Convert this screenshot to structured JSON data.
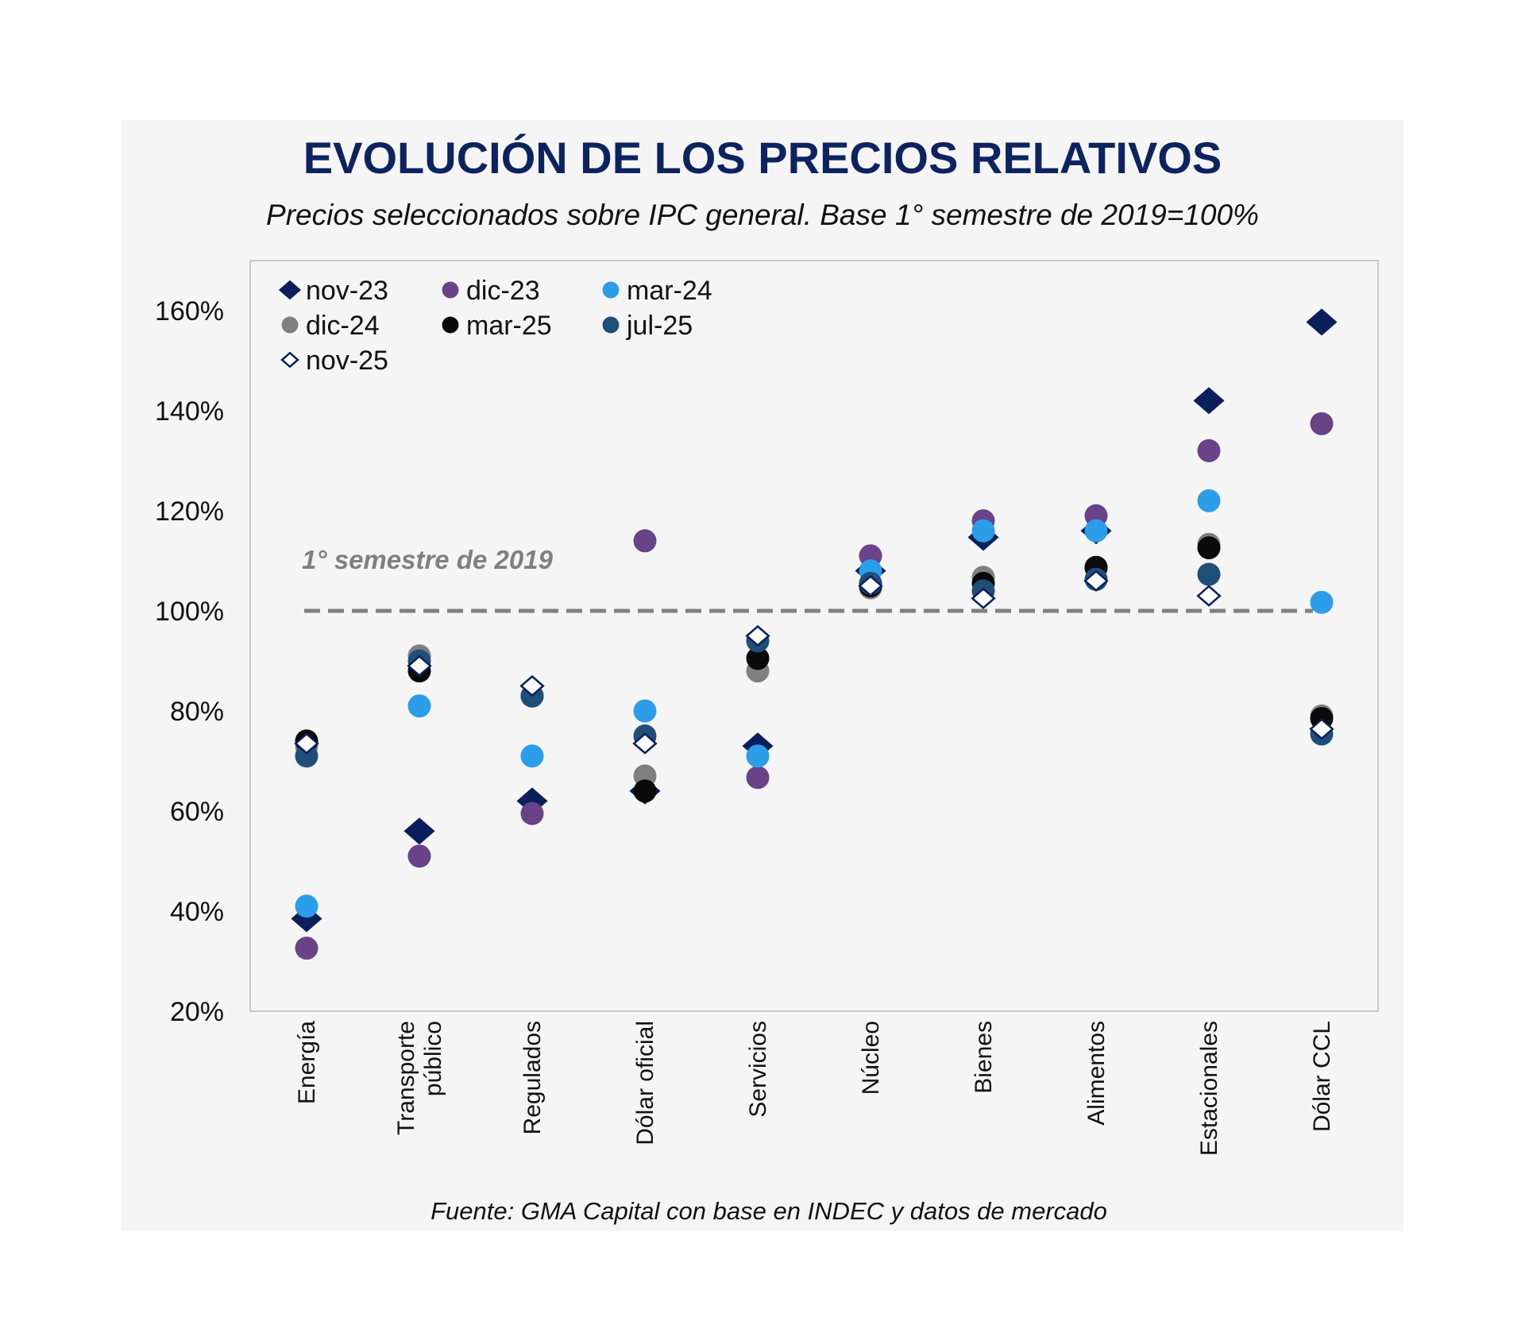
{
  "chart_data": {
    "type": "scatter",
    "title": "EVOLUCIÓN DE LOS PRECIOS RELATIVOS",
    "subtitle": "Precios seleccionados sobre IPC general. Base 1° semestre de 2019=100%",
    "source": "Fuente: GMA Capital con base en INDEC y datos de mercado",
    "xlabel": "",
    "ylabel": "",
    "ylim": [
      20,
      170
    ],
    "yticks": [
      20,
      40,
      60,
      80,
      100,
      120,
      140,
      160
    ],
    "ytick_labels": [
      "20%",
      "40%",
      "60%",
      "80%",
      "100%",
      "120%",
      "140%",
      "160%"
    ],
    "grid": false,
    "legend_position": "top-left",
    "categories": [
      [
        "Energía"
      ],
      [
        "Transporte",
        "público"
      ],
      [
        "Regulados"
      ],
      [
        "Dólar oficial"
      ],
      [
        "Servicios"
      ],
      [
        "Núcleo"
      ],
      [
        "Bienes"
      ],
      [
        "Alimentos"
      ],
      [
        "Estacionales"
      ],
      [
        "Dólar CCL"
      ]
    ],
    "reference_line": {
      "value": 100,
      "label": "1° semestre de 2019",
      "style": "dashed",
      "color": "#808080"
    },
    "series": [
      {
        "name": "nov-23",
        "marker": "diamond",
        "color": "#0a1f5c",
        "values": [
          38.5,
          56,
          62,
          64,
          73,
          108,
          114.7,
          116,
          142,
          157.7
        ]
      },
      {
        "name": "dic-23",
        "marker": "circle",
        "color": "#6a4287",
        "values": [
          32.6,
          51,
          59.5,
          114,
          66.7,
          111,
          118,
          119,
          132,
          137.4
        ]
      },
      {
        "name": "mar-24",
        "marker": "circle",
        "color": "#2b9de9",
        "values": [
          41,
          81,
          71,
          80,
          71,
          108,
          116,
          116,
          122,
          101.7
        ]
      },
      {
        "name": "dic-24",
        "marker": "circle",
        "color": "#808080",
        "values": [
          73,
          91,
          83,
          67,
          88,
          104.6,
          106.7,
          108.5,
          113.3,
          79
        ]
      },
      {
        "name": "mar-25",
        "marker": "circle",
        "color": "#0a0a0a",
        "values": [
          74,
          88,
          83,
          64,
          90.5,
          105,
          105.5,
          108.7,
          112.6,
          78.5
        ]
      },
      {
        "name": "jul-25",
        "marker": "circle",
        "color": "#1f4e79",
        "values": [
          71,
          90,
          83,
          75,
          94,
          105.5,
          104,
          106.3,
          107.3,
          75.4
        ]
      },
      {
        "name": "nov-25",
        "marker": "diamond-open",
        "color": "#0a1f5c",
        "values": [
          73.5,
          89,
          85,
          73.5,
          95,
          105,
          102.5,
          106,
          103,
          76.4
        ]
      }
    ]
  }
}
